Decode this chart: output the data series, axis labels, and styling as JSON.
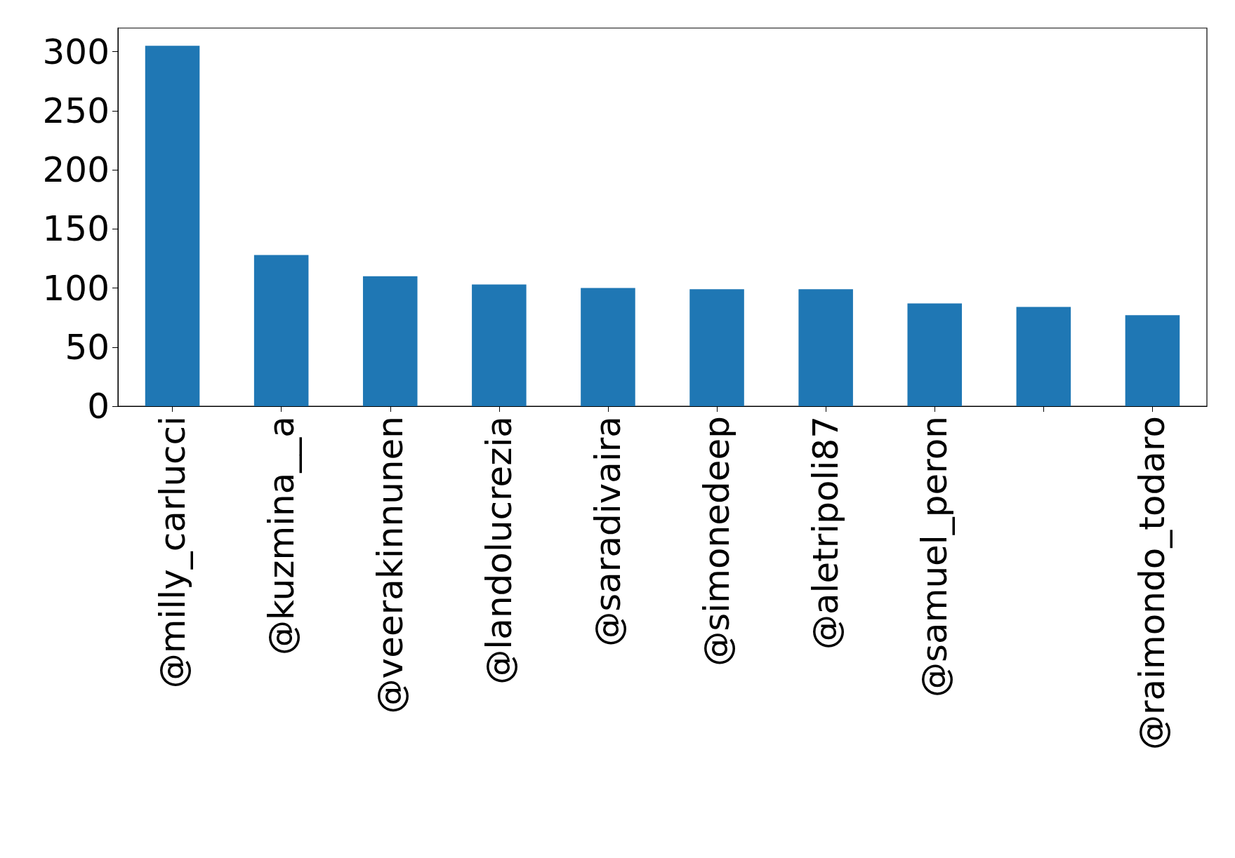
{
  "chart_data": {
    "type": "bar",
    "categories": [
      "@milly_carlucci",
      "@kuzmina__a",
      "@veerakinnunen",
      "@landolucrezia",
      "@saradivaira",
      "@simonedeep",
      "@aletripoli87",
      "@samuel_peron",
      null,
      "@raimondo_todaro"
    ],
    "values": [
      305,
      128,
      110,
      103,
      100,
      99,
      99,
      87,
      84,
      77
    ],
    "color": "#1f77b4",
    "ylim": [
      0,
      320
    ],
    "yticks": [
      0,
      50,
      100,
      150,
      200,
      250,
      300
    ],
    "grid": false
  }
}
